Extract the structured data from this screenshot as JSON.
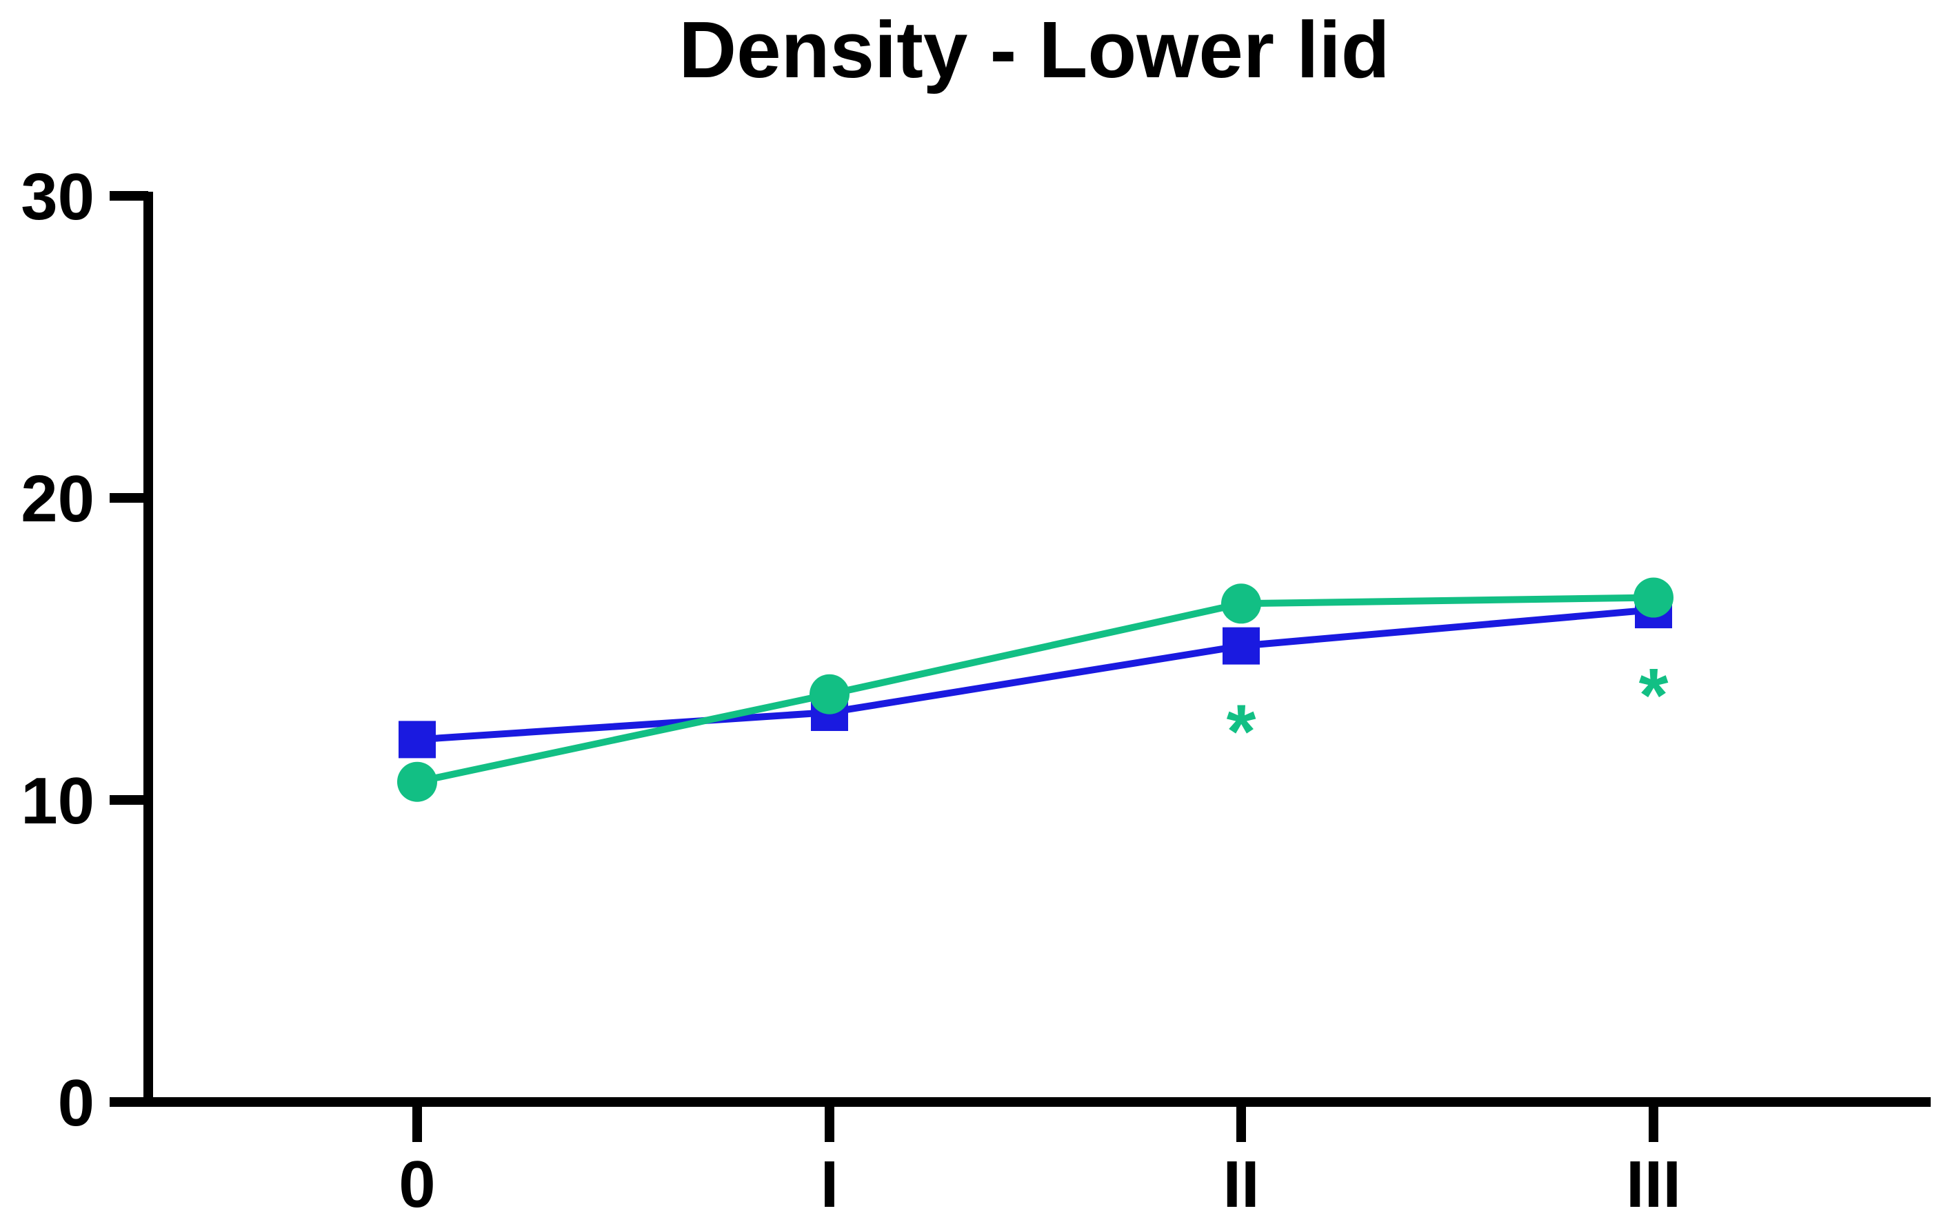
{
  "chart_data": {
    "type": "line",
    "title": "Density - Lower lid",
    "xlabel": "",
    "ylabel": "",
    "categories": [
      "0",
      "I",
      "II",
      "III"
    ],
    "ylim": [
      0,
      30
    ],
    "yticks": [
      0,
      10,
      20,
      30
    ],
    "grid": false,
    "legend": "none",
    "series": [
      {
        "color": "#1a1ae0",
        "marker": "square",
        "values": [
          12.0,
          12.9,
          15.1,
          16.3
        ]
      },
      {
        "color": "#12bf84",
        "marker": "circle",
        "values": [
          10.6,
          13.5,
          16.5,
          16.7
        ]
      }
    ],
    "annotations": [
      {
        "text": "*",
        "category": "II",
        "color": "#12bf84"
      },
      {
        "text": "*",
        "category": "III",
        "color": "#12bf84"
      }
    ]
  }
}
